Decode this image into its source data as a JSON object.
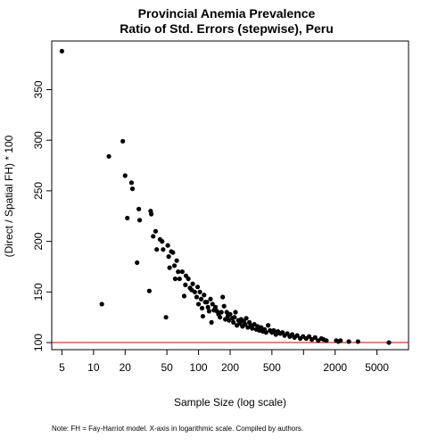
{
  "chart_data": {
    "type": "scatter",
    "title": "Provincial Anemia Prevalence",
    "subtitle": "Ratio of Std. Errors (stepwise), Peru",
    "xlabel": "Sample Size (log scale)",
    "ylabel": "(Direct / Spatial FH) * 100",
    "x_scale": "log",
    "xlim": [
      4,
      10000
    ],
    "ylim": [
      93,
      398
    ],
    "x_ticks": [
      5,
      10,
      20,
      50,
      100,
      200,
      500,
      2000,
      5000
    ],
    "x_tick_labels": [
      "5",
      "10",
      "20",
      "50",
      "100",
      "200",
      "500",
      "2000",
      "5000"
    ],
    "y_ticks": [
      100,
      150,
      200,
      250,
      300,
      350
    ],
    "y_tick_labels": [
      "100",
      "150",
      "200",
      "250",
      "300",
      "350"
    ],
    "reference_line": {
      "y": 100,
      "color": "#cc0000"
    },
    "grid": false,
    "note": "Note: FH = Fay-Harriot model. X-axis in logarithmic scale. Compiled by authors.",
    "series": [
      {
        "marker_color": "#000000",
        "points": [
          [
            5,
            388
          ],
          [
            12,
            138
          ],
          [
            14,
            284
          ],
          [
            19,
            299
          ],
          [
            20,
            265
          ],
          [
            21,
            223
          ],
          [
            23,
            258
          ],
          [
            23.5,
            252
          ],
          [
            26,
            179
          ],
          [
            27,
            232
          ],
          [
            27.5,
            221
          ],
          [
            34,
            151
          ],
          [
            35,
            230
          ],
          [
            35.5,
            227
          ],
          [
            37,
            205
          ],
          [
            39,
            210
          ],
          [
            40,
            192
          ],
          [
            43,
            202
          ],
          [
            45,
            200
          ],
          [
            46,
            192
          ],
          [
            49,
            125
          ],
          [
            51,
            196
          ],
          [
            52,
            185
          ],
          [
            53,
            174
          ],
          [
            55,
            190
          ],
          [
            57,
            189
          ],
          [
            59,
            176
          ],
          [
            60,
            163
          ],
          [
            62,
            181
          ],
          [
            64,
            170
          ],
          [
            66,
            163
          ],
          [
            70,
            170
          ],
          [
            73,
            146
          ],
          [
            75,
            157
          ],
          [
            76,
            166
          ],
          [
            80,
            163
          ],
          [
            83,
            154
          ],
          [
            86,
            152
          ],
          [
            88,
            158
          ],
          [
            92,
            150
          ],
          [
            96,
            145
          ],
          [
            98,
            155
          ],
          [
            100,
            138
          ],
          [
            103,
            150
          ],
          [
            106,
            143
          ],
          [
            108,
            134
          ],
          [
            110,
            126
          ],
          [
            113,
            147
          ],
          [
            116,
            140
          ],
          [
            120,
            140
          ],
          [
            123,
            135
          ],
          [
            126,
            131
          ],
          [
            130,
            143
          ],
          [
            133,
            120
          ],
          [
            136,
            138
          ],
          [
            140,
            132
          ],
          [
            145,
            135
          ],
          [
            150,
            131
          ],
          [
            155,
            128
          ],
          [
            160,
            125
          ],
          [
            165,
            130
          ],
          [
            170,
            145
          ],
          [
            175,
            136
          ],
          [
            180,
            123
          ],
          [
            186,
            130
          ],
          [
            190,
            126
          ],
          [
            195,
            122
          ],
          [
            200,
            128
          ],
          [
            210,
            124
          ],
          [
            215,
            120
          ],
          [
            220,
            125
          ],
          [
            225,
            130
          ],
          [
            232,
            117
          ],
          [
            240,
            122
          ],
          [
            248,
            119
          ],
          [
            255,
            123
          ],
          [
            262,
            116
          ],
          [
            270,
            121
          ],
          [
            278,
            118
          ],
          [
            285,
            124
          ],
          [
            295,
            115
          ],
          [
            305,
            120
          ],
          [
            315,
            117
          ],
          [
            325,
            114
          ],
          [
            340,
            118
          ],
          [
            355,
            113
          ],
          [
            365,
            116
          ],
          [
            380,
            112
          ],
          [
            395,
            115
          ],
          [
            410,
            111
          ],
          [
            425,
            113
          ],
          [
            440,
            110
          ],
          [
            460,
            117
          ],
          [
            480,
            112
          ],
          [
            500,
            110
          ],
          [
            520,
            112
          ],
          [
            545,
            108
          ],
          [
            570,
            111
          ],
          [
            600,
            109
          ],
          [
            630,
            110
          ],
          [
            660,
            107
          ],
          [
            700,
            109
          ],
          [
            740,
            106
          ],
          [
            780,
            108
          ],
          [
            820,
            105
          ],
          [
            870,
            107
          ],
          [
            930,
            104
          ],
          [
            990,
            106
          ],
          [
            1060,
            104
          ],
          [
            1130,
            106
          ],
          [
            1200,
            103
          ],
          [
            1290,
            105
          ],
          [
            1380,
            102
          ],
          [
            1480,
            104
          ],
          [
            1560,
            103
          ],
          [
            1650,
            102
          ],
          [
            2050,
            102
          ],
          [
            2150,
            101
          ],
          [
            2250,
            102
          ],
          [
            2700,
            101
          ],
          [
            3300,
            101
          ],
          [
            6500,
            100
          ]
        ]
      }
    ]
  }
}
